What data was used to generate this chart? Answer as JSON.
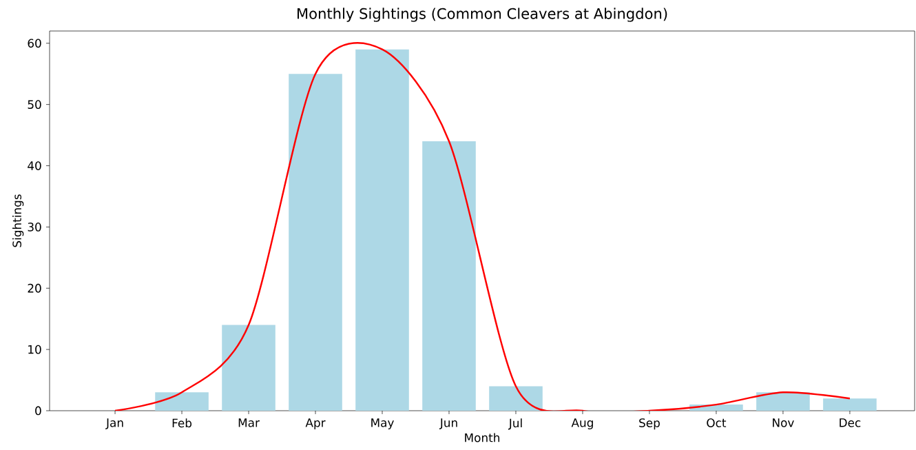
{
  "chart_data": {
    "type": "bar",
    "title": "Monthly Sightings (Common Cleavers at Abingdon)",
    "xlabel": "Month",
    "ylabel": "Sightings",
    "categories": [
      "Jan",
      "Feb",
      "Mar",
      "Apr",
      "May",
      "Jun",
      "Jul",
      "Aug",
      "Sep",
      "Oct",
      "Nov",
      "Dec"
    ],
    "series": [
      {
        "color": "#add8e6",
        "values": [
          0,
          3,
          14,
          55,
          59,
          44,
          4,
          0,
          0,
          1,
          3,
          2
        ]
      },
      {
        "type": "line",
        "color": "#ff0000",
        "values": [
          0,
          3,
          14,
          55,
          59,
          44,
          4,
          0,
          0,
          1,
          3,
          2
        ]
      }
    ],
    "ylim": [
      0,
      62
    ],
    "yticks": [
      0,
      10,
      20,
      30,
      40,
      50,
      60
    ],
    "grid": false
  }
}
